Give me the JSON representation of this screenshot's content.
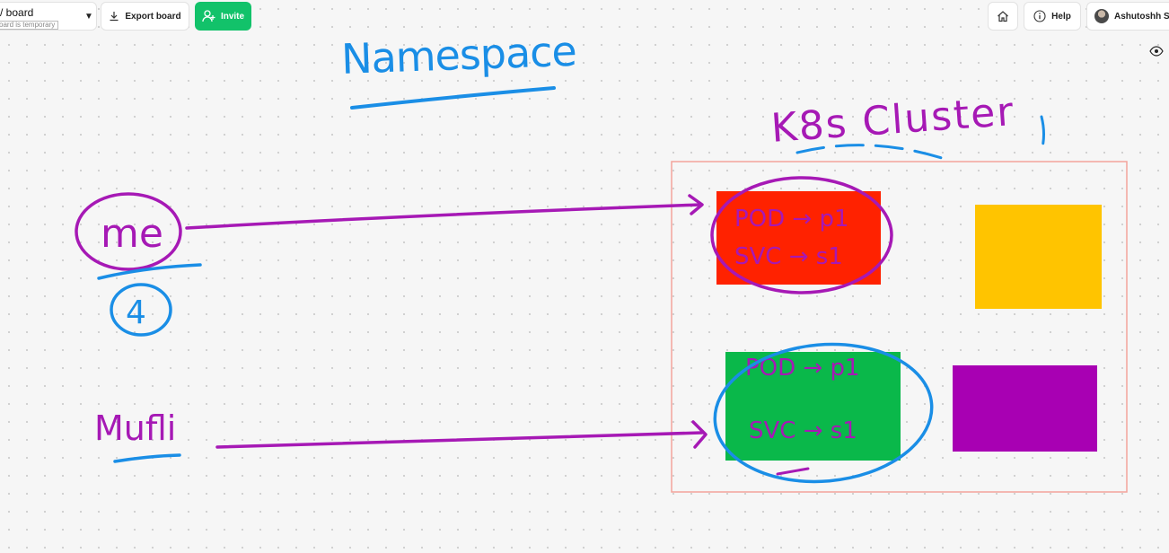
{
  "header": {
    "board_title": "/ board",
    "board_subtitle": "oard is temporary",
    "export_label": "Export board",
    "invite_label": "Invite",
    "help_label": "Help",
    "user_name": "Ashutoshh Sin"
  },
  "icons": {
    "board_menu": "chevron-down-icon",
    "export": "download-icon",
    "invite": "add-user-icon",
    "home": "home-icon",
    "help": "info-icon",
    "view": "eye-icon"
  },
  "canvas": {
    "handwriting": {
      "namespace": "Namespace",
      "cluster": "K8s Cluster",
      "user1": "me",
      "user1_num": "4",
      "user2": "Mufli",
      "pod1_line1": "POD → p1",
      "pod1_line2": "SVC → s1",
      "pod2_line1": "POD → p1",
      "pod2_line2": "SVC → s1"
    },
    "colors": {
      "ink_purple": "#a619b5",
      "ink_blue": "#1a8ee6",
      "cluster_border": "#f3a39b",
      "box_red": "#ff2200",
      "box_yellow": "#ffc400",
      "box_green": "#0ab84a",
      "box_purple": "#a800b3",
      "invite_green": "#12c26a"
    }
  }
}
